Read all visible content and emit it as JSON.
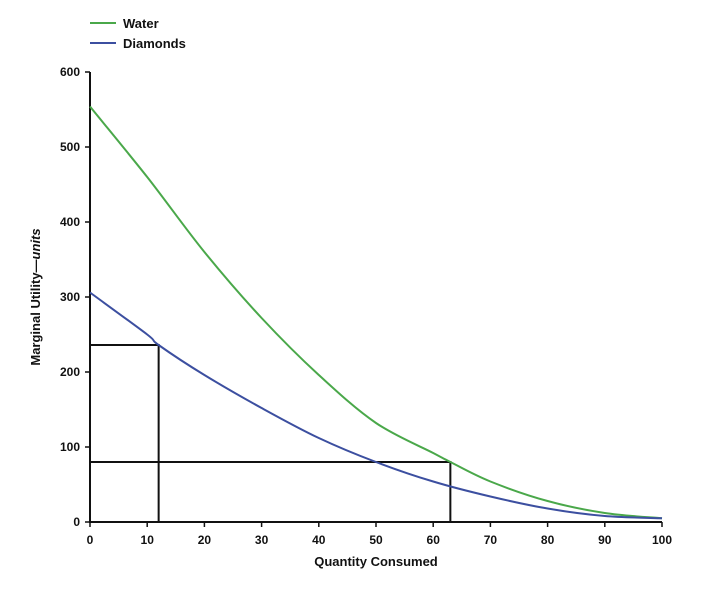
{
  "chart_data": {
    "type": "line",
    "title": "",
    "xlabel": "Quantity Consumed",
    "ylabel_main": "Marginal Utility—",
    "ylabel_italic": "units",
    "xlim": [
      0,
      100
    ],
    "ylim": [
      0,
      600
    ],
    "x_ticks": [
      0,
      10,
      20,
      30,
      40,
      50,
      60,
      70,
      80,
      90,
      100
    ],
    "y_ticks": [
      0,
      100,
      200,
      300,
      400,
      500,
      600
    ],
    "legend_position": "top-left",
    "series": [
      {
        "name": "Water",
        "color": "#4aa84a",
        "x": [
          0,
          10,
          20,
          30,
          40,
          50,
          60,
          63,
          70,
          80,
          90,
          100
        ],
        "y": [
          554,
          460,
          360,
          272,
          196,
          132,
          92,
          80,
          54,
          28,
          12,
          5
        ]
      },
      {
        "name": "Diamonds",
        "color": "#3c4fa0",
        "x": [
          0,
          10,
          12,
          20,
          30,
          40,
          50,
          60,
          70,
          80,
          90,
          100
        ],
        "y": [
          306,
          250,
          236,
          196,
          152,
          112,
          80,
          54,
          34,
          18,
          8,
          5
        ]
      }
    ],
    "annotations": [
      {
        "type": "rectangle",
        "x": [
          0,
          12
        ],
        "y": [
          0,
          236
        ],
        "note": "area under Diamonds at Q=12"
      },
      {
        "type": "rectangle",
        "x": [
          0,
          63
        ],
        "y": [
          0,
          80
        ],
        "note": "area under Water at Q=63"
      }
    ]
  }
}
